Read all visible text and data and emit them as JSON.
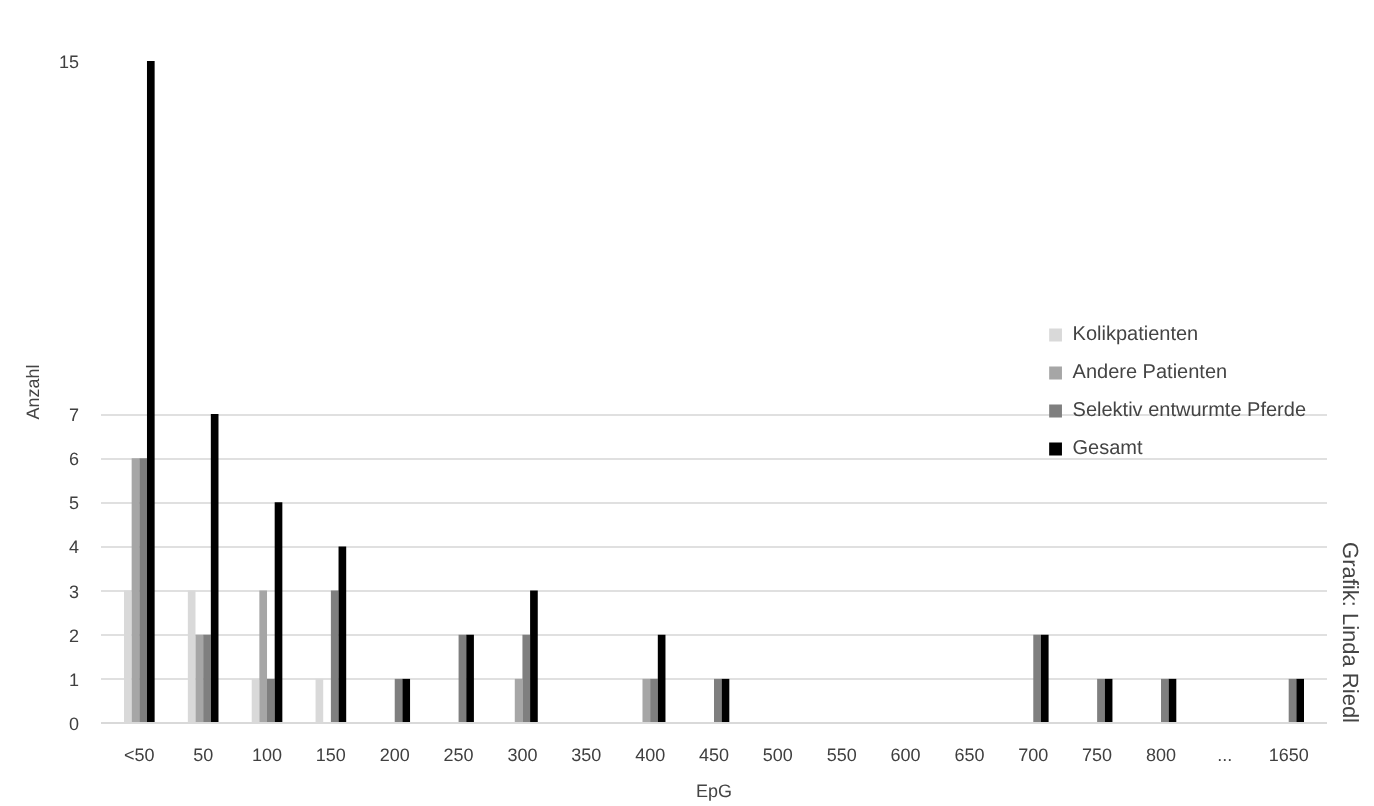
{
  "chart_data": {
    "type": "bar",
    "xlabel": "EpG",
    "ylabel": "Anzahl",
    "categories": [
      "<50",
      "50",
      "100",
      "150",
      "200",
      "250",
      "300",
      "350",
      "400",
      "450",
      "500",
      "550",
      "600",
      "650",
      "700",
      "750",
      "800",
      "...",
      "1650"
    ],
    "series": [
      {
        "name": "Kolikpatienten",
        "color": "#d9d9d9",
        "values": [
          3,
          3,
          1,
          1,
          0,
          0,
          0,
          0,
          0,
          0,
          0,
          0,
          0,
          0,
          0,
          0,
          0,
          0,
          0
        ]
      },
      {
        "name": "Andere Patienten",
        "color": "#a6a6a6",
        "values": [
          6,
          2,
          3,
          0,
          0,
          0,
          1,
          0,
          1,
          0,
          0,
          0,
          0,
          0,
          0,
          0,
          0,
          0,
          0
        ]
      },
      {
        "name": "Selektiv entwurmte Pferde",
        "color": "#7f7f7f",
        "values": [
          6,
          2,
          1,
          3,
          1,
          2,
          2,
          0,
          1,
          1,
          0,
          0,
          0,
          0,
          2,
          1,
          1,
          0,
          1
        ]
      },
      {
        "name": "Gesamt",
        "color": "#000000",
        "values": [
          15,
          7,
          5,
          4,
          1,
          2,
          3,
          0,
          2,
          1,
          0,
          0,
          0,
          0,
          2,
          1,
          1,
          0,
          1
        ]
      }
    ],
    "ylim": [
      0,
      15
    ],
    "yticks": [
      0,
      1,
      2,
      3,
      4,
      5,
      6,
      7,
      15
    ],
    "grid": "y",
    "legend": "right",
    "annotations": [
      "Grafik: Linda Riedl"
    ]
  }
}
